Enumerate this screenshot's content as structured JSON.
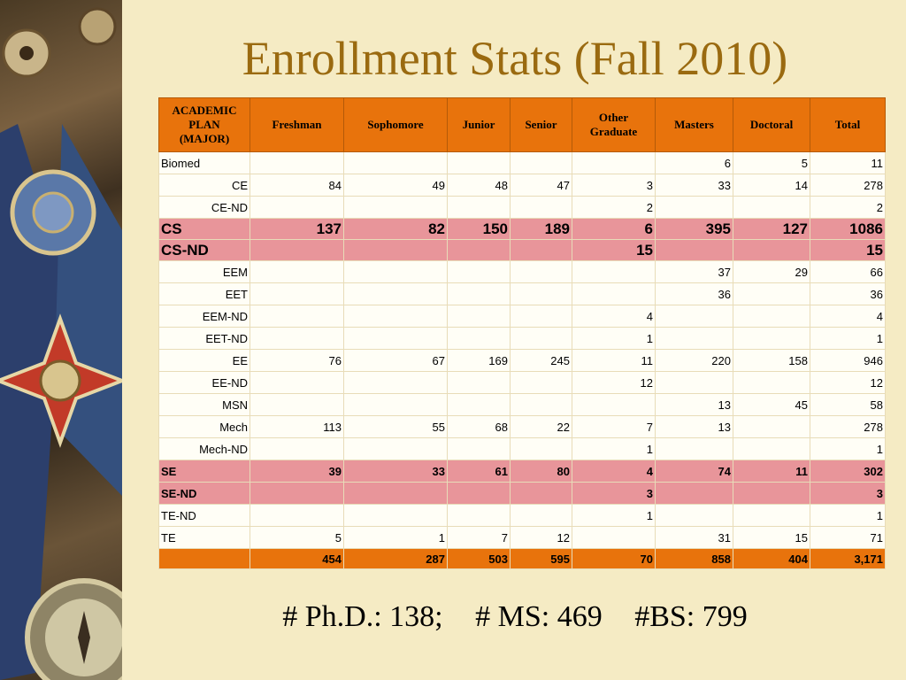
{
  "title": "Enrollment Stats (Fall 2010)",
  "table": {
    "header": {
      "plan": [
        "ACADEMIC",
        "PLAN",
        "(MAJOR)"
      ],
      "freshman": "Freshman",
      "sophomore": "Sophomore",
      "junior": "Junior",
      "senior": "Senior",
      "other_graduate": [
        "Other",
        "Graduate"
      ],
      "masters": "Masters",
      "doctoral": "Doctoral",
      "total": "Total"
    },
    "rows": [
      {
        "plan": "Biomed",
        "freshman": "",
        "sophomore": "",
        "junior": "",
        "senior": "",
        "other_graduate": "",
        "masters": "6",
        "doctoral": "5",
        "total": "11"
      },
      {
        "plan": "CE",
        "freshman": "84",
        "sophomore": "49",
        "junior": "48",
        "senior": "47",
        "other_graduate": "3",
        "masters": "33",
        "doctoral": "14",
        "total": "278"
      },
      {
        "plan": "CE-ND",
        "freshman": "",
        "sophomore": "",
        "junior": "",
        "senior": "",
        "other_graduate": "2",
        "masters": "",
        "doctoral": "",
        "total": "2"
      },
      {
        "plan": "CS",
        "freshman": "137",
        "sophomore": "82",
        "junior": "150",
        "senior": "189",
        "other_graduate": "6",
        "masters": "395",
        "doctoral": "127",
        "total": "1086"
      },
      {
        "plan": "CS-ND",
        "freshman": "",
        "sophomore": "",
        "junior": "",
        "senior": "",
        "other_graduate": "15",
        "masters": "",
        "doctoral": "",
        "total": "15"
      },
      {
        "plan": "EEM",
        "freshman": "",
        "sophomore": "",
        "junior": "",
        "senior": "",
        "other_graduate": "",
        "masters": "37",
        "doctoral": "29",
        "total": "66"
      },
      {
        "plan": "EET",
        "freshman": "",
        "sophomore": "",
        "junior": "",
        "senior": "",
        "other_graduate": "",
        "masters": "36",
        "doctoral": "",
        "total": "36"
      },
      {
        "plan": "EEM-ND",
        "freshman": "",
        "sophomore": "",
        "junior": "",
        "senior": "",
        "other_graduate": "4",
        "masters": "",
        "doctoral": "",
        "total": "4"
      },
      {
        "plan": "EET-ND",
        "freshman": "",
        "sophomore": "",
        "junior": "",
        "senior": "",
        "other_graduate": "1",
        "masters": "",
        "doctoral": "",
        "total": "1"
      },
      {
        "plan": "EE",
        "freshman": "76",
        "sophomore": "67",
        "junior": "169",
        "senior": "245",
        "other_graduate": "11",
        "masters": "220",
        "doctoral": "158",
        "total": "946"
      },
      {
        "plan": "EE-ND",
        "freshman": "",
        "sophomore": "",
        "junior": "",
        "senior": "",
        "other_graduate": "12",
        "masters": "",
        "doctoral": "",
        "total": "12"
      },
      {
        "plan": "MSN",
        "freshman": "",
        "sophomore": "",
        "junior": "",
        "senior": "",
        "other_graduate": "",
        "masters": "13",
        "doctoral": "45",
        "total": "58"
      },
      {
        "plan": "Mech",
        "freshman": "113",
        "sophomore": "55",
        "junior": "68",
        "senior": "22",
        "other_graduate": "7",
        "masters": "13",
        "doctoral": "",
        "total": "278"
      },
      {
        "plan": "Mech-ND",
        "freshman": "",
        "sophomore": "",
        "junior": "",
        "senior": "",
        "other_graduate": "1",
        "masters": "",
        "doctoral": "",
        "total": "1"
      },
      {
        "plan": "SE",
        "freshman": "39",
        "sophomore": "33",
        "junior": "61",
        "senior": "80",
        "other_graduate": "4",
        "masters": "74",
        "doctoral": "11",
        "total": "302"
      },
      {
        "plan": "SE-ND",
        "freshman": "",
        "sophomore": "",
        "junior": "",
        "senior": "",
        "other_graduate": "3",
        "masters": "",
        "doctoral": "",
        "total": "3"
      },
      {
        "plan": "TE-ND",
        "freshman": "",
        "sophomore": "",
        "junior": "",
        "senior": "",
        "other_graduate": "1",
        "masters": "",
        "doctoral": "",
        "total": "1"
      },
      {
        "plan": "TE",
        "freshman": "5",
        "sophomore": "1",
        "junior": "7",
        "senior": "12",
        "other_graduate": "",
        "masters": "31",
        "doctoral": "15",
        "total": "71"
      }
    ],
    "totals": {
      "plan": "",
      "freshman": "454",
      "sophomore": "287",
      "junior": "503",
      "senior": "595",
      "other_graduate": "70",
      "masters": "858",
      "doctoral": "404",
      "total": "3,171"
    }
  },
  "footer": {
    "phd": "# Ph.D.: 138;",
    "ms": "# MS: 469",
    "bs": "#BS: 799"
  },
  "colors": {
    "background": "#f5ebc4",
    "title": "#9a6a10",
    "header_fill": "#e8730c",
    "highlight_row": "#e8959a"
  }
}
